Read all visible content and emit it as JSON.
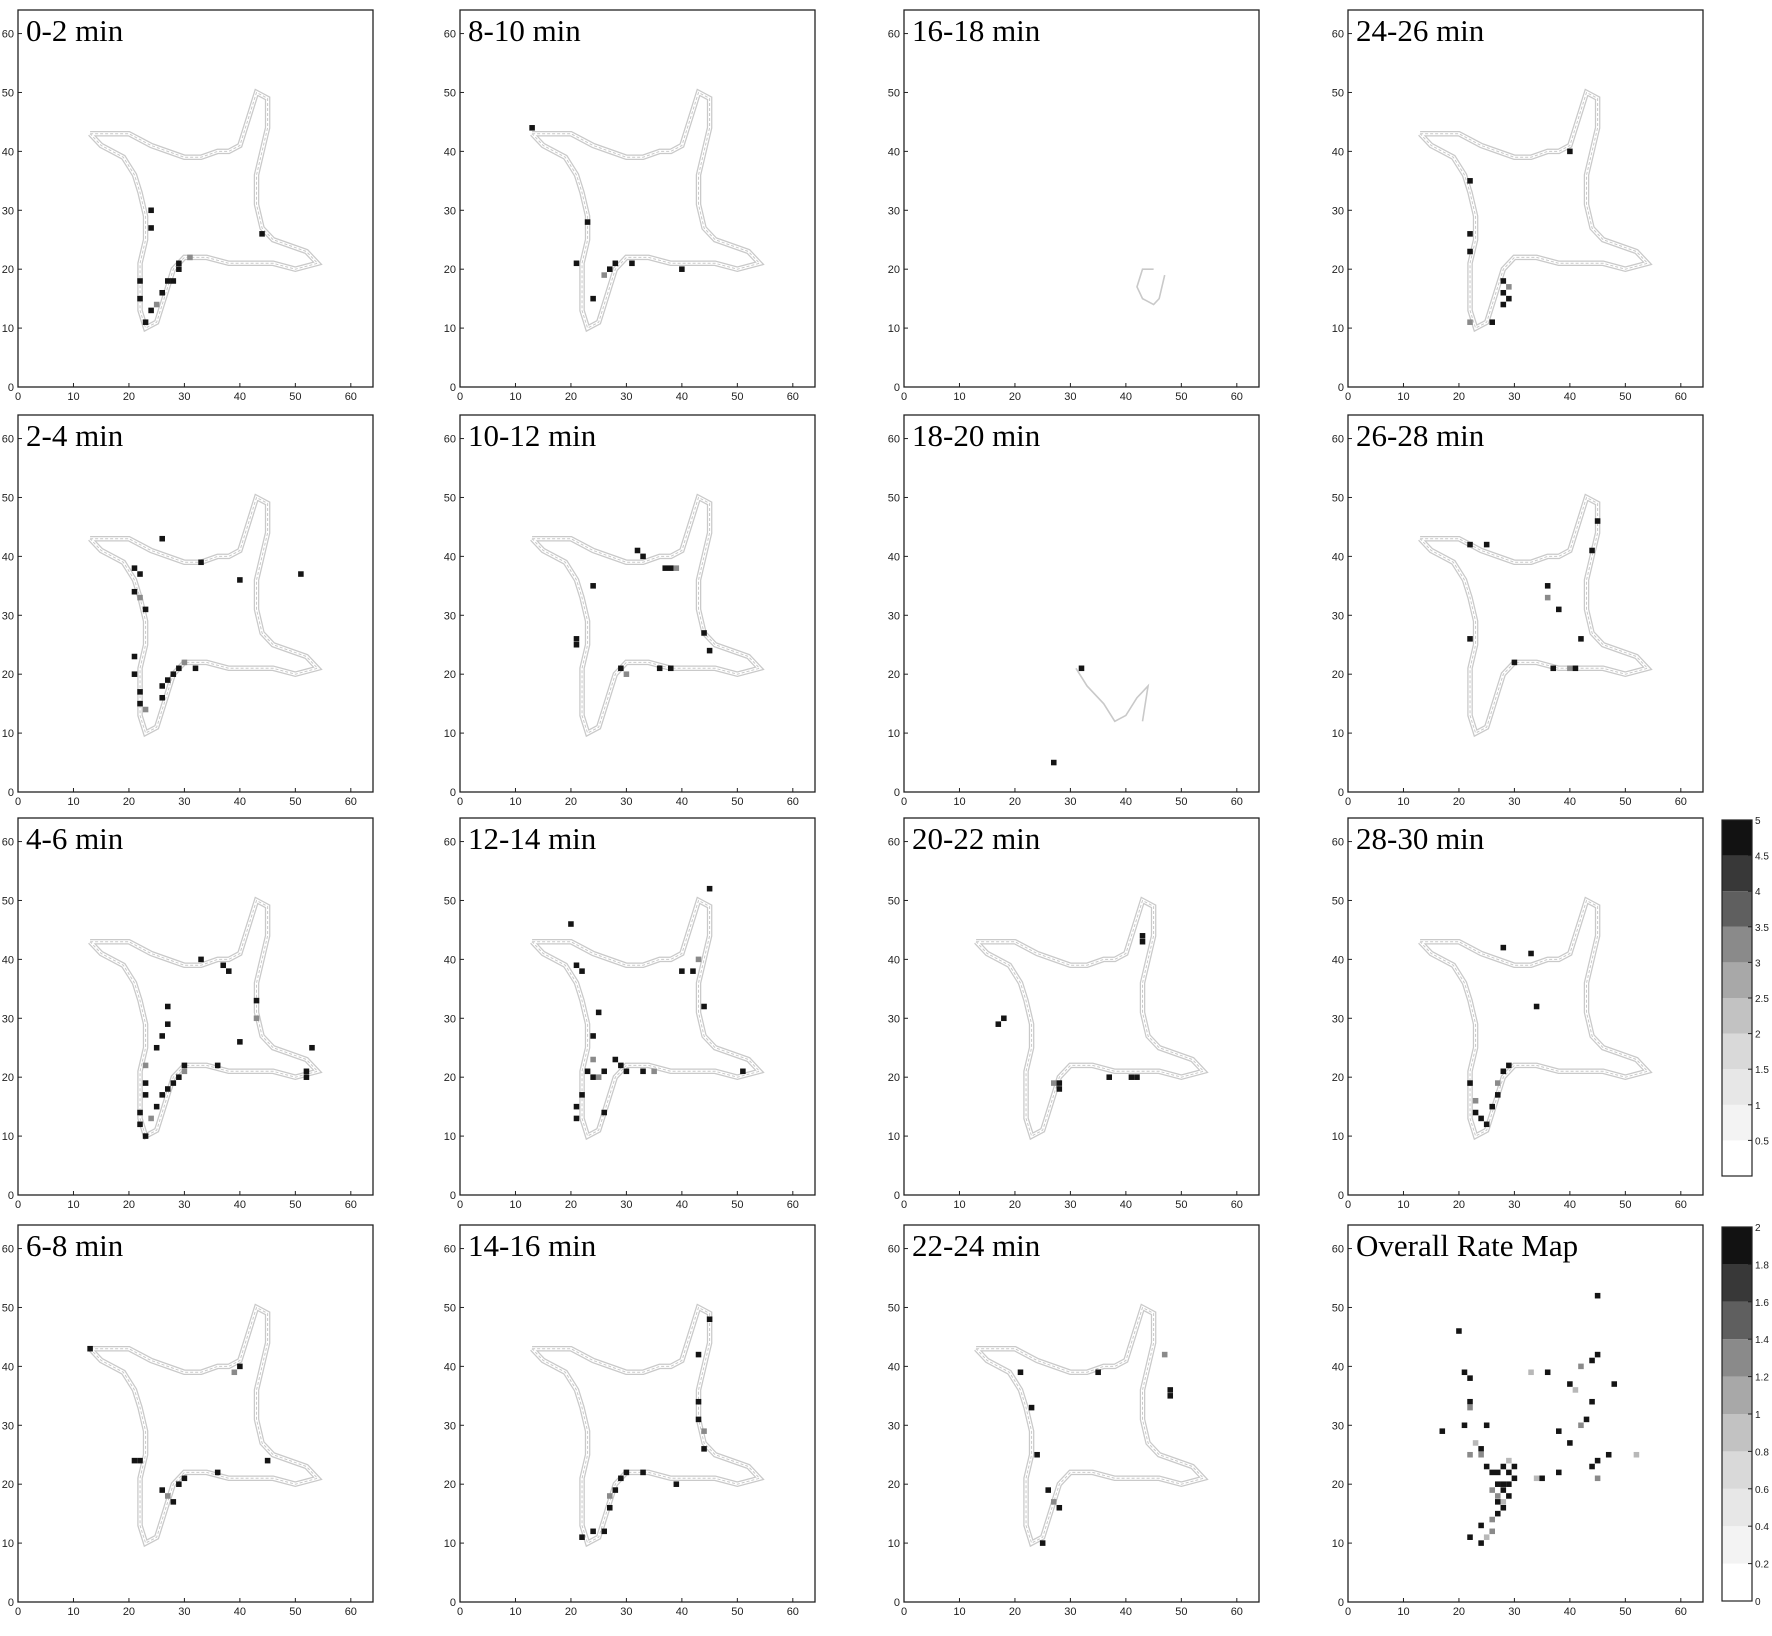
{
  "figure": {
    "panel_titles": [
      "0-2 min",
      "8-10 min",
      "16-18 min",
      "24-26 min",
      "2-4 min",
      "10-12 min",
      "18-20 min",
      "26-28 min",
      "4-6 min",
      "12-14 min",
      "20-22 min",
      "28-30 min",
      "6-8 min",
      "14-16 min",
      "22-24 min",
      "Overall Rate Map"
    ],
    "x_ticks": [
      "0",
      "10",
      "20",
      "30",
      "40",
      "50",
      "60"
    ],
    "y_ticks": [
      "0",
      "10",
      "20",
      "30",
      "40",
      "50",
      "60"
    ]
  },
  "colors": {
    "path": "#c9c9c9",
    "frame": "#222222",
    "fire_dark": "#141414",
    "fire_mid": "#8a8a8a"
  },
  "chart_data": {
    "type": "heatmap",
    "xlim": [
      0,
      64
    ],
    "ylim": [
      0,
      64
    ],
    "grid": false,
    "trajectory": [
      [
        13,
        43
      ],
      [
        20,
        43
      ],
      [
        22,
        42
      ],
      [
        24,
        41
      ],
      [
        27,
        40
      ],
      [
        30,
        39
      ],
      [
        33,
        39
      ],
      [
        36,
        40
      ],
      [
        38,
        40
      ],
      [
        40,
        41
      ],
      [
        41,
        44
      ],
      [
        42,
        47
      ],
      [
        43,
        50
      ],
      [
        45,
        49
      ],
      [
        45,
        44
      ],
      [
        44,
        40
      ],
      [
        43,
        36
      ],
      [
        43,
        31
      ],
      [
        44,
        27
      ],
      [
        46,
        25
      ],
      [
        49,
        24
      ],
      [
        52,
        23
      ],
      [
        54,
        21
      ],
      [
        50,
        20
      ],
      [
        46,
        21
      ],
      [
        42,
        21
      ],
      [
        38,
        21
      ],
      [
        34,
        22
      ],
      [
        30,
        22
      ],
      [
        28,
        20
      ],
      [
        27,
        17
      ],
      [
        26,
        14
      ],
      [
        25,
        11
      ],
      [
        23,
        10
      ],
      [
        22,
        13
      ],
      [
        22,
        17
      ],
      [
        22,
        21
      ],
      [
        23,
        25
      ],
      [
        23,
        29
      ],
      [
        22,
        33
      ],
      [
        21,
        36
      ],
      [
        19,
        39
      ],
      [
        15,
        41
      ],
      [
        13,
        43
      ]
    ],
    "panels": [
      {
        "title": "0-2 min",
        "path": "full",
        "fire": [
          [
            22,
            18
          ],
          [
            22,
            15
          ],
          [
            23,
            11
          ],
          [
            24,
            13
          ],
          [
            25,
            14
          ],
          [
            26,
            16
          ],
          [
            27,
            18
          ],
          [
            28,
            18
          ],
          [
            29,
            20
          ],
          [
            29,
            21
          ],
          [
            31,
            22
          ],
          [
            44,
            26
          ],
          [
            24,
            30
          ],
          [
            24,
            27
          ]
        ]
      },
      {
        "title": "8-10 min",
        "path": "full",
        "fire": [
          [
            13,
            44
          ],
          [
            21,
            21
          ],
          [
            23,
            28
          ],
          [
            24,
            15
          ],
          [
            26,
            19
          ],
          [
            27,
            20
          ],
          [
            28,
            21
          ],
          [
            31,
            21
          ],
          [
            40,
            20
          ]
        ]
      },
      {
        "title": "16-18 min",
        "path": "fragment",
        "fire": []
      },
      {
        "title": "24-26 min",
        "path": "full",
        "fire": [
          [
            40,
            40
          ],
          [
            22,
            35
          ],
          [
            22,
            26
          ],
          [
            22,
            23
          ],
          [
            22,
            11
          ],
          [
            26,
            11
          ],
          [
            28,
            14
          ],
          [
            28,
            16
          ],
          [
            28,
            18
          ],
          [
            29,
            15
          ],
          [
            29,
            17
          ]
        ]
      },
      {
        "title": "2-4 min",
        "path": "full",
        "fire": [
          [
            26,
            43
          ],
          [
            21,
            38
          ],
          [
            22,
            37
          ],
          [
            21,
            34
          ],
          [
            22,
            33
          ],
          [
            23,
            31
          ],
          [
            21,
            23
          ],
          [
            21,
            20
          ],
          [
            22,
            17
          ],
          [
            22,
            15
          ],
          [
            23,
            14
          ],
          [
            26,
            16
          ],
          [
            26,
            18
          ],
          [
            27,
            19
          ],
          [
            28,
            20
          ],
          [
            29,
            21
          ],
          [
            30,
            22
          ],
          [
            32,
            21
          ],
          [
            33,
            39
          ],
          [
            40,
            36
          ],
          [
            51,
            37
          ]
        ]
      },
      {
        "title": "10-12 min",
        "path": "full",
        "fire": [
          [
            32,
            41
          ],
          [
            33,
            40
          ],
          [
            37,
            38
          ],
          [
            38,
            38
          ],
          [
            39,
            38
          ],
          [
            44,
            27
          ],
          [
            45,
            24
          ],
          [
            21,
            25
          ],
          [
            21,
            26
          ],
          [
            29,
            21
          ],
          [
            30,
            20
          ],
          [
            36,
            21
          ],
          [
            38,
            21
          ],
          [
            24,
            35
          ]
        ]
      },
      {
        "title": "18-20 min",
        "path": "fragment",
        "fire": [
          [
            32,
            21
          ],
          [
            27,
            5
          ]
        ]
      },
      {
        "title": "26-28 min",
        "path": "full",
        "fire": [
          [
            45,
            46
          ],
          [
            22,
            42
          ],
          [
            25,
            42
          ],
          [
            36,
            35
          ],
          [
            36,
            33
          ],
          [
            38,
            31
          ],
          [
            42,
            26
          ],
          [
            22,
            26
          ],
          [
            30,
            22
          ],
          [
            37,
            21
          ],
          [
            40,
            21
          ],
          [
            41,
            21
          ],
          [
            44,
            41
          ]
        ]
      },
      {
        "title": "4-6 min",
        "path": "full",
        "fire": [
          [
            33,
            40
          ],
          [
            37,
            39
          ],
          [
            38,
            38
          ],
          [
            43,
            33
          ],
          [
            43,
            30
          ],
          [
            40,
            26
          ],
          [
            27,
            32
          ],
          [
            27,
            29
          ],
          [
            26,
            27
          ],
          [
            25,
            25
          ],
          [
            23,
            22
          ],
          [
            23,
            19
          ],
          [
            23,
            17
          ],
          [
            22,
            14
          ],
          [
            22,
            12
          ],
          [
            23,
            10
          ],
          [
            24,
            13
          ],
          [
            25,
            15
          ],
          [
            26,
            17
          ],
          [
            27,
            18
          ],
          [
            28,
            19
          ],
          [
            29,
            20
          ],
          [
            30,
            21
          ],
          [
            30,
            22
          ],
          [
            36,
            22
          ],
          [
            53,
            25
          ],
          [
            52,
            21
          ],
          [
            52,
            20
          ]
        ]
      },
      {
        "title": "12-14 min",
        "path": "full",
        "fire": [
          [
            20,
            46
          ],
          [
            21,
            39
          ],
          [
            22,
            38
          ],
          [
            45,
            52
          ],
          [
            43,
            40
          ],
          [
            42,
            38
          ],
          [
            40,
            38
          ],
          [
            44,
            32
          ],
          [
            25,
            31
          ],
          [
            24,
            27
          ],
          [
            24,
            23
          ],
          [
            23,
            21
          ],
          [
            22,
            17
          ],
          [
            21,
            15
          ],
          [
            21,
            13
          ],
          [
            24,
            20
          ],
          [
            25,
            20
          ],
          [
            26,
            21
          ],
          [
            28,
            23
          ],
          [
            29,
            22
          ],
          [
            30,
            21
          ],
          [
            33,
            21
          ],
          [
            35,
            21
          ],
          [
            51,
            21
          ],
          [
            26,
            14
          ]
        ]
      },
      {
        "title": "20-22 min",
        "path": "full",
        "fire": [
          [
            43,
            43
          ],
          [
            43,
            44
          ],
          [
            17,
            29
          ],
          [
            18,
            30
          ],
          [
            27,
            19
          ],
          [
            28,
            18
          ],
          [
            28,
            19
          ],
          [
            37,
            20
          ],
          [
            41,
            20
          ],
          [
            42,
            20
          ]
        ]
      },
      {
        "title": "28-30 min",
        "path": "full",
        "fire": [
          [
            28,
            42
          ],
          [
            33,
            41
          ],
          [
            34,
            32
          ],
          [
            22,
            19
          ],
          [
            23,
            16
          ],
          [
            23,
            14
          ],
          [
            24,
            13
          ],
          [
            25,
            12
          ],
          [
            26,
            15
          ],
          [
            27,
            17
          ],
          [
            27,
            19
          ],
          [
            28,
            21
          ],
          [
            29,
            22
          ]
        ]
      },
      {
        "title": "6-8 min",
        "path": "full",
        "fire": [
          [
            13,
            43
          ],
          [
            21,
            24
          ],
          [
            22,
            24
          ],
          [
            26,
            19
          ],
          [
            27,
            18
          ],
          [
            28,
            17
          ],
          [
            29,
            20
          ],
          [
            30,
            21
          ],
          [
            36,
            22
          ],
          [
            40,
            40
          ],
          [
            39,
            39
          ],
          [
            45,
            24
          ]
        ]
      },
      {
        "title": "14-16 min",
        "path": "full",
        "fire": [
          [
            45,
            48
          ],
          [
            43,
            42
          ],
          [
            43,
            34
          ],
          [
            43,
            31
          ],
          [
            44,
            29
          ],
          [
            44,
            26
          ],
          [
            22,
            11
          ],
          [
            24,
            12
          ],
          [
            26,
            12
          ],
          [
            27,
            16
          ],
          [
            27,
            18
          ],
          [
            28,
            19
          ],
          [
            29,
            21
          ],
          [
            30,
            22
          ],
          [
            33,
            22
          ],
          [
            39,
            20
          ]
        ]
      },
      {
        "title": "22-24 min",
        "path": "full",
        "fire": [
          [
            21,
            39
          ],
          [
            23,
            33
          ],
          [
            24,
            25
          ],
          [
            26,
            19
          ],
          [
            27,
            17
          ],
          [
            28,
            16
          ],
          [
            25,
            10
          ],
          [
            35,
            39
          ],
          [
            48,
            36
          ],
          [
            48,
            35
          ],
          [
            47,
            42
          ]
        ]
      },
      {
        "title": "Overall Rate Map",
        "path": "none",
        "fire": [
          [
            45,
            52
          ],
          [
            40,
            37
          ],
          [
            42,
            40
          ],
          [
            41,
            36
          ],
          [
            21,
            39
          ],
          [
            22,
            38
          ],
          [
            22,
            34
          ],
          [
            22,
            33
          ],
          [
            21,
            30
          ],
          [
            17,
            29
          ],
          [
            23,
            27
          ],
          [
            24,
            26
          ],
          [
            22,
            25
          ],
          [
            25,
            23
          ],
          [
            26,
            22
          ],
          [
            27,
            22
          ],
          [
            28,
            23
          ],
          [
            29,
            24
          ],
          [
            30,
            23
          ],
          [
            30,
            21
          ],
          [
            29,
            20
          ],
          [
            28,
            19
          ],
          [
            27,
            18
          ],
          [
            27,
            17
          ],
          [
            28,
            17
          ],
          [
            28,
            16
          ],
          [
            27,
            15
          ],
          [
            26,
            14
          ],
          [
            24,
            13
          ],
          [
            22,
            11
          ],
          [
            24,
            10
          ],
          [
            25,
            11
          ],
          [
            26,
            12
          ],
          [
            29,
            18
          ],
          [
            28,
            20
          ],
          [
            29,
            22
          ],
          [
            27,
            20
          ],
          [
            26,
            19
          ],
          [
            34,
            21
          ],
          [
            35,
            21
          ],
          [
            38,
            22
          ],
          [
            44,
            23
          ],
          [
            45,
            21
          ],
          [
            45,
            24
          ],
          [
            47,
            25
          ],
          [
            52,
            25
          ],
          [
            43,
            31
          ],
          [
            42,
            30
          ],
          [
            40,
            27
          ],
          [
            38,
            29
          ],
          [
            44,
            34
          ],
          [
            48,
            37
          ],
          [
            33,
            39
          ],
          [
            36,
            39
          ],
          [
            44,
            41
          ],
          [
            45,
            42
          ],
          [
            20,
            46
          ],
          [
            24,
            25
          ],
          [
            25,
            30
          ]
        ]
      }
    ],
    "colorbars": [
      {
        "min": 0,
        "max": 5,
        "ticks": [
          "0.5",
          "1",
          "1.5",
          "2",
          "2.5",
          "3",
          "3.5",
          "4",
          "4.5",
          "5"
        ],
        "levels": [
          0.5,
          1,
          1.5,
          2,
          2.5,
          3,
          3.5,
          4,
          4.5,
          5
        ]
      },
      {
        "min": 0,
        "max": 2,
        "ticks": [
          "0",
          "0.2",
          "0.4",
          "0.6",
          "0.8",
          "1",
          "1.2",
          "1.4",
          "1.6",
          "1.8",
          "2"
        ],
        "levels": [
          0.2,
          0.4,
          0.6,
          0.8,
          1,
          1.2,
          1.4,
          1.6,
          1.8,
          2
        ]
      }
    ]
  }
}
